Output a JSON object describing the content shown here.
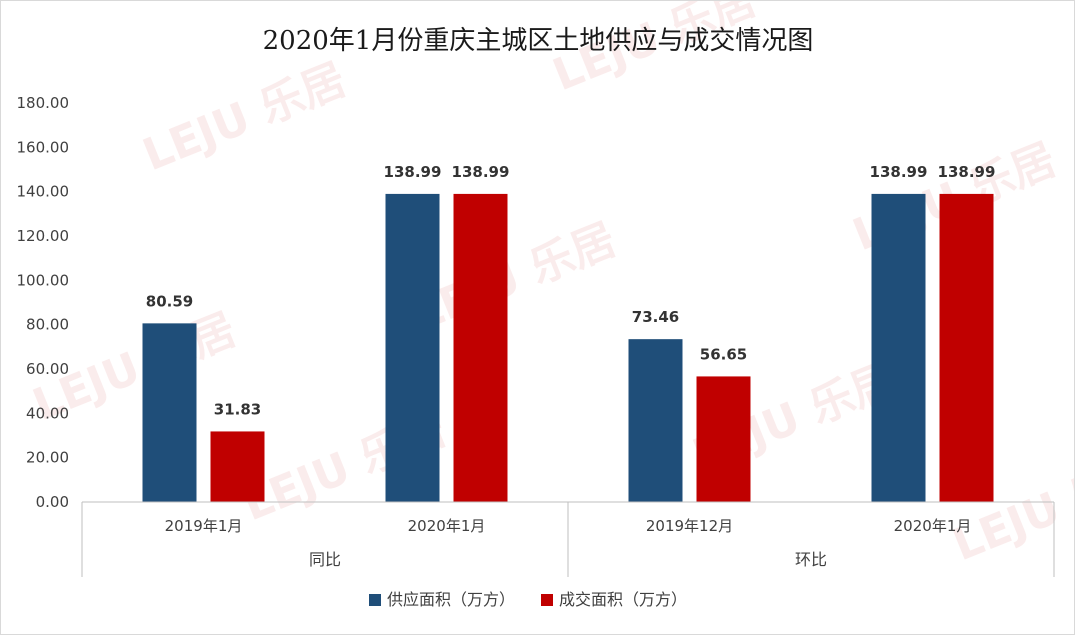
{
  "chart_data": {
    "type": "bar",
    "title": "2020年1月份重庆主城区土地供应与成交情况图",
    "ylim": [
      0,
      180
    ],
    "yticks": [
      "0.00",
      "20.00",
      "40.00",
      "60.00",
      "80.00",
      "100.00",
      "120.00",
      "140.00",
      "160.00",
      "180.00"
    ],
    "groups": [
      {
        "label": "同比",
        "categories": [
          "2019年1月",
          "2020年1月"
        ]
      },
      {
        "label": "环比",
        "categories": [
          "2019年12月",
          "2020年1月"
        ]
      }
    ],
    "categories": [
      "2019年1月",
      "2020年1月",
      "2019年12月",
      "2020年1月"
    ],
    "series": [
      {
        "name": "供应面积（万方）",
        "color": "#1f4e79",
        "values": [
          80.59,
          138.99,
          73.46,
          138.99
        ]
      },
      {
        "name": "成交面积（万方）",
        "color": "#c00000",
        "values": [
          31.83,
          138.99,
          56.65,
          138.99
        ]
      }
    ],
    "data_labels": [
      [
        "80.59",
        "138.99",
        "73.46",
        "138.99"
      ],
      [
        "31.83",
        "138.99",
        "56.65",
        "138.99"
      ]
    ],
    "grid": false,
    "legend": "bottom"
  },
  "watermark": "LEJU 乐居"
}
